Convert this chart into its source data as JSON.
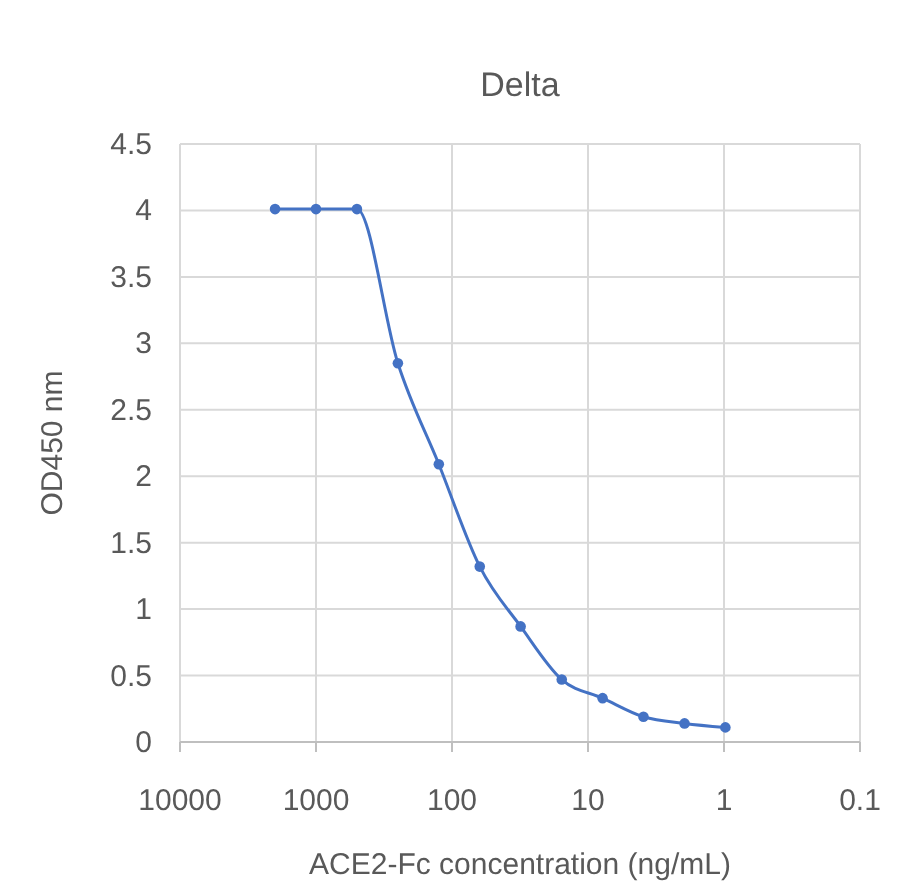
{
  "chart_data": {
    "type": "line",
    "title": "Delta",
    "xlabel": "ACE2-Fc concentration (ng/mL)",
    "ylabel": "OD450 nm",
    "x": [
      2000,
      1000,
      500,
      250,
      125,
      62.5,
      31.3,
      15.6,
      7.81,
      3.91,
      1.95,
      0.977
    ],
    "series": [
      {
        "color": "#4472c4",
        "values": [
          4.01,
          4.01,
          4.01,
          2.85,
          2.09,
          1.32,
          0.87,
          0.47,
          0.33,
          0.19,
          0.14,
          0.11
        ]
      }
    ],
    "log": "x",
    "xlim": [
      10000,
      0.1
    ],
    "xticks": [
      10000,
      1000,
      100,
      10,
      1,
      0.1
    ],
    "ylim": [
      0,
      4.5
    ],
    "yticks": [
      0,
      0.5,
      1,
      1.5,
      2,
      2.5,
      3,
      3.5,
      4,
      4.5
    ],
    "grid": true,
    "marker": "circle"
  }
}
